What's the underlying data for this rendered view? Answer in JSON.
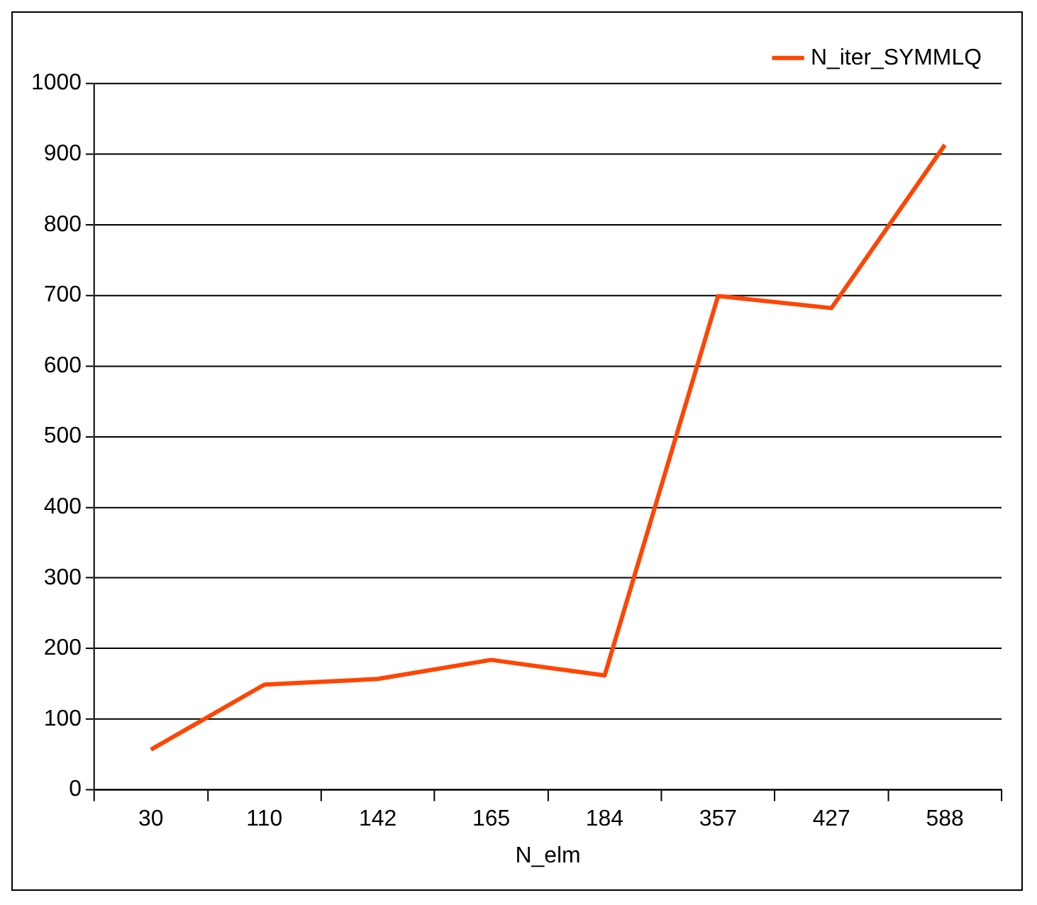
{
  "chart_data": {
    "type": "line",
    "xlabel": "N_elm",
    "categories": [
      "30",
      "110",
      "142",
      "165",
      "184",
      "357",
      "427",
      "588"
    ],
    "series": [
      {
        "name": "N_iter_SYMMLQ",
        "color": "#ff4500",
        "values": [
          57,
          149,
          157,
          184,
          162,
          699,
          682,
          913
        ]
      }
    ],
    "ylim": [
      0,
      1000
    ],
    "yticks": [
      0,
      100,
      200,
      300,
      400,
      500,
      600,
      700,
      800,
      900,
      1000
    ],
    "grid": "y",
    "legend": "top right",
    "marker": "none"
  }
}
